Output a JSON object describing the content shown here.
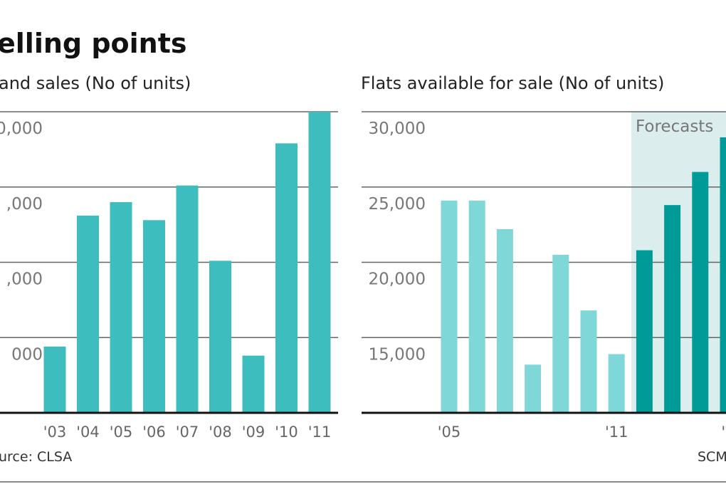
{
  "title": "elling points",
  "source_left": "urce: CLSA",
  "source_right": "SCM",
  "colors": {
    "left_bars": "#3dbdbd",
    "actual_bars": "#80d7d7",
    "forecast_bars": "#009b96",
    "forecast_shade": "#dcedee",
    "grid": "#666666"
  },
  "chart_data": [
    {
      "type": "bar",
      "title": "and sales (No of units)",
      "ylim": [
        0,
        40000
      ],
      "grid": true,
      "yticks": [
        {
          "value": 40000,
          "label": "0,000"
        },
        {
          "value": 30000,
          "label": ",000"
        },
        {
          "value": 20000,
          "label": ",000"
        },
        {
          "value": 10000,
          "label": "000"
        }
      ],
      "categories": [
        "'03",
        "'04",
        "'05",
        "'06",
        "'07",
        "'08",
        "'09",
        "'10",
        "'11"
      ],
      "values": [
        8800,
        26200,
        28000,
        25600,
        30200,
        20200,
        7600,
        35800,
        40000
      ]
    },
    {
      "type": "bar",
      "title": "Flats available for sale (No of units)",
      "ylim": [
        10000,
        30000
      ],
      "grid": true,
      "yticks": [
        {
          "value": 30000,
          "label": "30,000"
        },
        {
          "value": 25000,
          "label": "25,000"
        },
        {
          "value": 20000,
          "label": "20,000"
        },
        {
          "value": 15000,
          "label": "15,000"
        }
      ],
      "annotation": "Forecasts",
      "categories": [
        "2005",
        "2006",
        "2007",
        "2008",
        "2009",
        "2010",
        "2011",
        "2012",
        "2013",
        "2014",
        "2015"
      ],
      "xtick_labels": [
        {
          "index": 0,
          "label": "'05"
        },
        {
          "index": 6,
          "label": "'11"
        },
        {
          "index": 10,
          "label": "'1"
        }
      ],
      "values": [
        24100,
        24100,
        22200,
        13200,
        20500,
        16800,
        13900,
        20800,
        23800,
        26000,
        28300
      ],
      "forecast": [
        false,
        false,
        false,
        false,
        false,
        false,
        false,
        true,
        true,
        true,
        true
      ]
    }
  ]
}
